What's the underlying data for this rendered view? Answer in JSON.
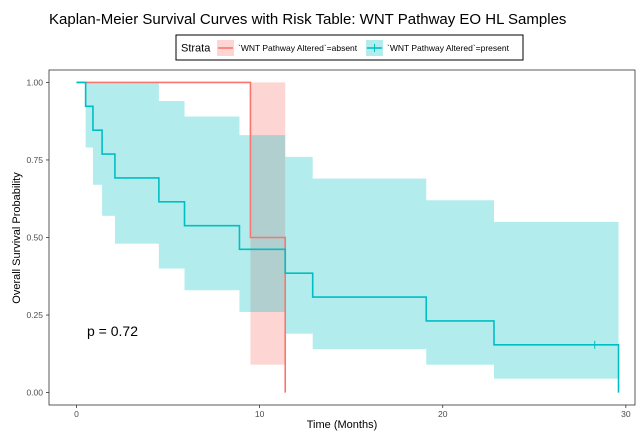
{
  "chart_data": {
    "type": "line",
    "title": "Kaplan-Meier Survival Curves with Risk Table: WNT Pathway EO HL Samples",
    "xlabel": "Time (Months)",
    "ylabel": "Overall Survival Probability",
    "xlim": [
      -1.5,
      30.5
    ],
    "ylim": [
      -0.04,
      1.04
    ],
    "x_ticks": [
      0,
      10,
      20,
      30
    ],
    "y_ticks": [
      0,
      0.25,
      0.5,
      0.75,
      1
    ],
    "y_tick_labels": [
      "0.00",
      "0.25",
      "0.50",
      "0.75",
      "1.00"
    ],
    "grid": false,
    "legend": {
      "title": "Strata",
      "position": "top-center"
    },
    "annotation": "p = 0.72",
    "series": [
      {
        "name": "`WNT Pathway Altered`=absent",
        "color": "#F8766D",
        "fill": "#F8766D",
        "steps": [
          {
            "t": 0,
            "s": 1.0,
            "lower": 1.0,
            "upper": 1.0
          },
          {
            "t": 9.5,
            "s": 0.5,
            "lower": 0.09,
            "upper": 1.0
          },
          {
            "t": 11.4,
            "s": 0.0,
            "lower": 0.0,
            "upper": 0.0
          }
        ],
        "end_time": 11.4,
        "censor_times": []
      },
      {
        "name": "`WNT Pathway Altered`=present",
        "color": "#00BFC4",
        "fill": "#00BFC4",
        "steps": [
          {
            "t": 0,
            "s": 1.0,
            "lower": 1.0,
            "upper": 1.0
          },
          {
            "t": 0.5,
            "s": 0.923,
            "lower": 0.79,
            "upper": 1.0
          },
          {
            "t": 0.9,
            "s": 0.846,
            "lower": 0.67,
            "upper": 1.0
          },
          {
            "t": 1.4,
            "s": 0.769,
            "lower": 0.57,
            "upper": 1.0
          },
          {
            "t": 2.1,
            "s": 0.692,
            "lower": 0.48,
            "upper": 1.0
          },
          {
            "t": 4.5,
            "s": 0.615,
            "lower": 0.4,
            "upper": 0.94
          },
          {
            "t": 5.9,
            "s": 0.538,
            "lower": 0.33,
            "upper": 0.89
          },
          {
            "t": 8.9,
            "s": 0.462,
            "lower": 0.26,
            "upper": 0.83
          },
          {
            "t": 11.4,
            "s": 0.385,
            "lower": 0.19,
            "upper": 0.76
          },
          {
            "t": 12.9,
            "s": 0.308,
            "lower": 0.14,
            "upper": 0.69
          },
          {
            "t": 19.1,
            "s": 0.231,
            "lower": 0.09,
            "upper": 0.62
          },
          {
            "t": 22.8,
            "s": 0.154,
            "lower": 0.045,
            "upper": 0.55
          },
          {
            "t": 29.6,
            "s": 0.0,
            "lower": 0.0,
            "upper": 0.0
          }
        ],
        "end_time": 29.6,
        "censor_times": [
          28.3
        ]
      }
    ]
  }
}
